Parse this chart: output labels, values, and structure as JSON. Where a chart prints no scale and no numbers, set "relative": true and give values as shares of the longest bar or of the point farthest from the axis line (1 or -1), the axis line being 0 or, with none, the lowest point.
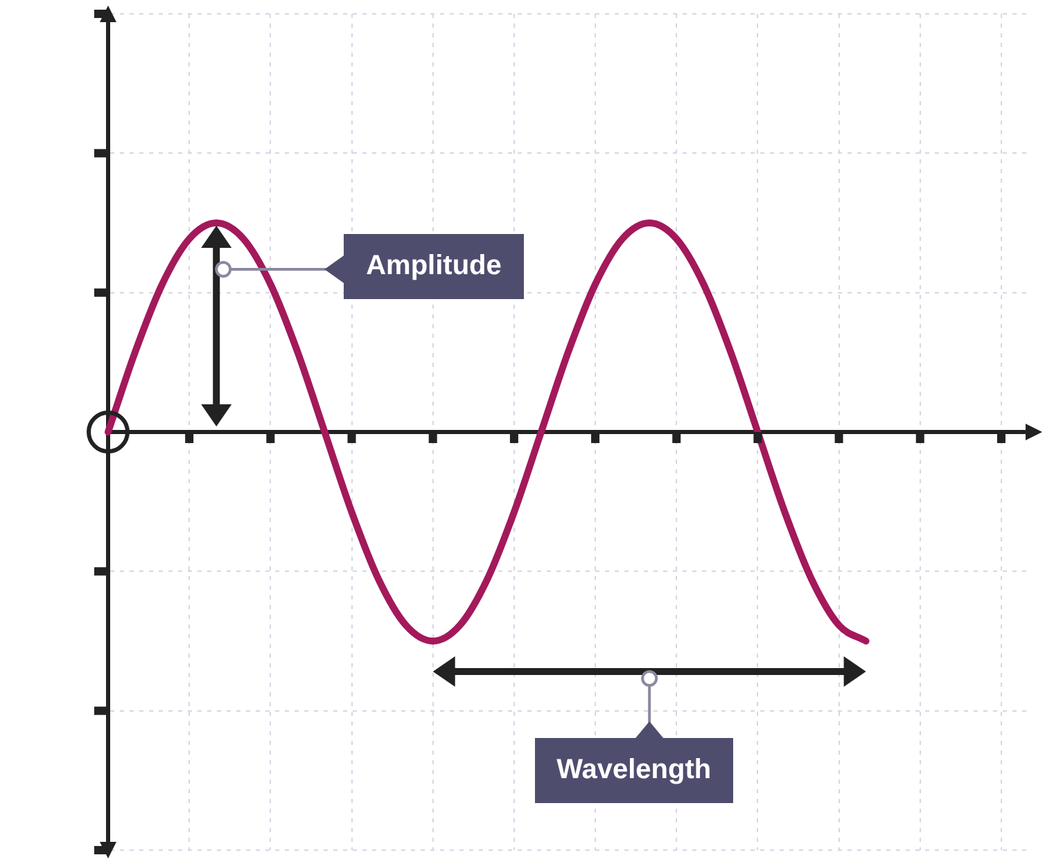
{
  "chart_data": {
    "type": "line",
    "relative": true,
    "grid": true,
    "marker": "none",
    "line_style": "solid",
    "categories": [
      null,
      null,
      null,
      null,
      null,
      null,
      null,
      null,
      null,
      null,
      null,
      null,
      null,
      null,
      null,
      null,
      null,
      null,
      null,
      null,
      null,
      null,
      null,
      null,
      null,
      null,
      null,
      null,
      null,
      null,
      null,
      null,
      null,
      null,
      null
    ],
    "series": [
      {
        "color": "#a3195b",
        "values": [
          0,
          0.383,
          0.707,
          0.924,
          1,
          0.924,
          0.707,
          0.383,
          0,
          -0.383,
          -0.707,
          -0.924,
          -1,
          -0.924,
          -0.707,
          -0.383,
          0,
          0.383,
          0.707,
          0.924,
          1,
          0.924,
          0.707,
          0.383,
          0,
          -0.383,
          -0.707,
          -0.924,
          -1,
          null,
          null,
          null,
          null,
          null,
          null
        ]
      }
    ],
    "annotations": [
      "Amplitude",
      "Wavelength"
    ]
  }
}
